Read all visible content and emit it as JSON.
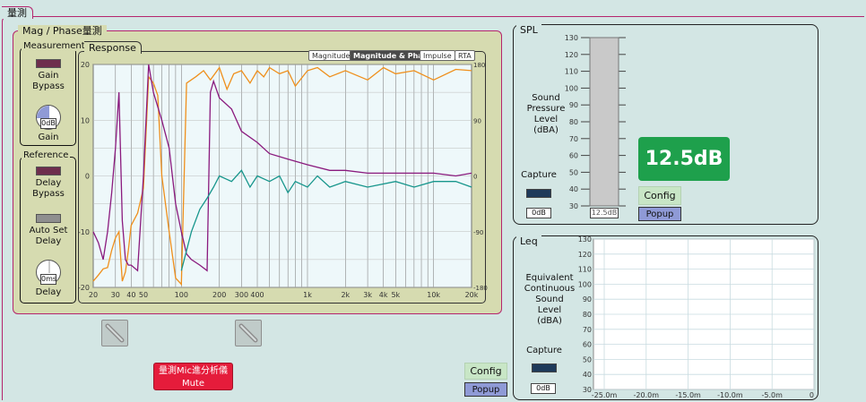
{
  "app": {
    "title": "量測"
  },
  "mag_phase": {
    "title": "Mag / Phase量測",
    "measurement": {
      "title": "Measurement",
      "gain_bypass_label": "Gain\nBypass",
      "gain_value": "0dB",
      "gain_label": "Gain"
    },
    "reference": {
      "title": "Reference",
      "delay_bypass_label": "Delay\nBypass",
      "auto_set_delay_label": "Auto Set\nDelay",
      "delay_value": "0ms",
      "delay_label": "Delay"
    },
    "response": {
      "title": "Response",
      "mode_buttons": [
        "Magnitude",
        "Magnitude & Phase",
        "Impulse",
        "RTA"
      ],
      "active_mode": "Magnitude & Phase",
      "y_left_ticks": [
        "20",
        "10",
        "0",
        "-10",
        "-20"
      ],
      "y_right_ticks": [
        "180",
        "90",
        "0",
        "-90",
        "-180"
      ],
      "x_ticks": [
        "20",
        "30",
        "40",
        "50",
        "100",
        "200",
        "300",
        "400",
        "1k",
        "2k",
        "3k",
        "4k",
        "5k",
        "10k",
        "20k"
      ]
    }
  },
  "chart_data": {
    "type": "line",
    "x_scale": "log",
    "xlim": [
      20,
      20000
    ],
    "ylim": [
      -20,
      20
    ],
    "y2lim": [
      -180,
      180
    ],
    "grid": true,
    "colors": {
      "orange": "#ef8f1b",
      "purple": "#8a1a7e",
      "teal": "#17968c"
    },
    "series": [
      {
        "axis": "right",
        "color": "orange",
        "x": [
          20,
          22,
          24,
          26,
          28,
          30,
          32,
          34,
          36,
          38,
          40,
          45,
          50,
          55,
          60,
          65,
          70,
          80,
          90,
          100,
          110,
          130,
          150,
          170,
          200,
          230,
          260,
          300,
          350,
          400,
          450,
          500,
          600,
          700,
          800,
          1000,
          1200,
          1500,
          2000,
          3000,
          4000,
          5000,
          7000,
          10000,
          15000,
          20000
        ],
        "y": [
          -170,
          -160,
          -150,
          -148,
          -120,
          -100,
          -90,
          -170,
          -155,
          -120,
          -80,
          -60,
          -20,
          160,
          150,
          130,
          0,
          -90,
          -165,
          -175,
          150,
          160,
          170,
          155,
          175,
          140,
          165,
          170,
          150,
          170,
          160,
          175,
          165,
          170,
          145,
          170,
          175,
          160,
          170,
          155,
          175,
          165,
          170,
          155,
          172,
          170
        ]
      },
      {
        "axis": "left",
        "color": "purple",
        "x": [
          20,
          22,
          24,
          26,
          28,
          30,
          32,
          34,
          36,
          38,
          40,
          45,
          50,
          55,
          60,
          70,
          80,
          90,
          100,
          110,
          120,
          140,
          160,
          170,
          180,
          200,
          250,
          300,
          400,
          500,
          700,
          1000,
          1500,
          2000,
          3000,
          5000,
          10000,
          15000,
          20000
        ],
        "y": [
          -10,
          -12,
          -15,
          -10,
          -3,
          5,
          15,
          -8,
          -15,
          -16,
          -16,
          -17,
          0,
          20,
          15,
          10,
          5,
          -5,
          -10,
          -14,
          -15,
          -16,
          -17,
          15,
          17,
          14,
          12,
          8,
          6,
          4,
          3,
          2,
          1,
          1,
          0.5,
          0.5,
          0.5,
          0,
          0.5
        ]
      },
      {
        "axis": "left",
        "color": "teal",
        "x": [
          100,
          120,
          140,
          160,
          180,
          200,
          250,
          300,
          350,
          400,
          500,
          600,
          700,
          800,
          1000,
          1200,
          1500,
          2000,
          3000,
          5000,
          7000,
          10000,
          15000,
          20000
        ],
        "y": [
          -17,
          -10,
          -6,
          -4,
          -2,
          0,
          -1,
          1,
          -2,
          0,
          -1,
          0,
          -3,
          -1,
          -2,
          0,
          -2,
          -1,
          -2,
          -1,
          -2,
          -1,
          -1,
          -2
        ]
      }
    ]
  },
  "spl": {
    "title": "SPL",
    "axis_label": "Sound\nPressure\nLevel\n(dBA)",
    "ticks": [
      "130",
      "120",
      "110",
      "100",
      "90",
      "80",
      "70",
      "60",
      "50",
      "40",
      "30"
    ],
    "bar_level_db": 12.5,
    "bar_label": "12.5dB",
    "readout": "12.5dB",
    "capture_label": "Capture",
    "capture_value": "0dB",
    "config_label": "Config",
    "popup_label": "Popup"
  },
  "leq": {
    "title": "Leq",
    "axis_label": "Equivalent\nContinuous\nSound\nLevel\n(dBA)",
    "y_ticks": [
      "130",
      "120",
      "110",
      "100",
      "90",
      "80",
      "70",
      "60",
      "50",
      "40",
      "30"
    ],
    "x_ticks": [
      "-25.0m",
      "-20.0m",
      "-15.0m",
      "-10.0m",
      "-5.0m",
      "0"
    ],
    "capture_label": "Capture",
    "capture_value": "0dB"
  },
  "bottom": {
    "mute_label": "量測Mic進分析儀\nMute",
    "config_label": "Config",
    "popup_label": "Popup",
    "ghost_icon": "wrench-disabled-icon"
  }
}
